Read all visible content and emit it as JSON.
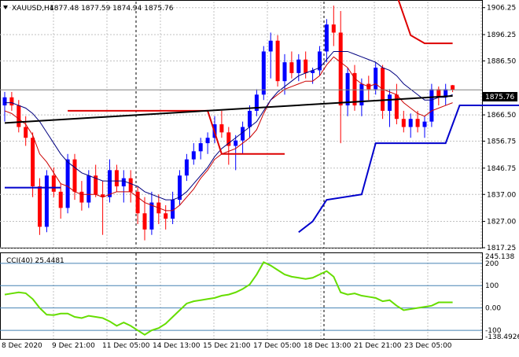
{
  "header": {
    "symbol": "XAUUSD,H4",
    "ohlc": "1877.48 1877.59 1874.94 1875.76",
    "arrow_icon": "triangle-down-icon"
  },
  "colors": {
    "background": "#ffffff",
    "grid": "#c0c0c0",
    "bull": "#0000ff",
    "bear": "#ff0000",
    "ma_fast": "#cc0000",
    "ma_slow": "#000080",
    "supertrend_up": "#0000cc",
    "supertrend_down": "#dd0000",
    "trendline": "#000000",
    "cci": "#66dd00",
    "cci_levels": "#4682b4",
    "price_tag_bg": "#000000",
    "price_tag_text": "#ffffff"
  },
  "cci_label": "CCI(40) 25.4481",
  "current_price": "1875.76",
  "price_axis_labels": [
    "1906.25",
    "1896.25",
    "1886.50",
    "1866.50",
    "1856.75",
    "1846.75",
    "1837.00",
    "1827.00",
    "1817.25"
  ],
  "cci_axis_labels": [
    "245.138",
    "200",
    "100",
    "0.00",
    "-100",
    "-138.4926"
  ],
  "time_labels": [
    "8 Dec 2020",
    "9 Dec 21:00",
    "11 Dec 05:00",
    "14 Dec 13:00",
    "15 Dec 21:00",
    "17 Dec 05:00",
    "18 Dec 13:00",
    "21 Dec 21:00",
    "23 Dec 05:00"
  ],
  "chart_data": [
    {
      "type": "candlestick",
      "title": "XAUUSD,H4",
      "y_range": [
        1817.25,
        1908.5
      ],
      "series": [
        {
          "name": "candles",
          "ohlc": [
            [
              1870,
              1875,
              1864,
              1873
            ],
            [
              1873,
              1875,
              1868,
              1870
            ],
            [
              1870,
              1872,
              1860,
              1862
            ],
            [
              1862,
              1866,
              1855,
              1858
            ],
            [
              1858,
              1860,
              1836,
              1840
            ],
            [
              1840,
              1843,
              1822,
              1825
            ],
            [
              1825,
              1846,
              1823,
              1844
            ],
            [
              1844,
              1847,
              1836,
              1838
            ],
            [
              1838,
              1841,
              1828,
              1832
            ],
            [
              1832,
              1852,
              1830,
              1850
            ],
            [
              1850,
              1852,
              1835,
              1838
            ],
            [
              1838,
              1842,
              1831,
              1834
            ],
            [
              1834,
              1846,
              1832,
              1844
            ],
            [
              1844,
              1848,
              1836,
              1837
            ],
            [
              1837,
              1842,
              1822,
              1836
            ],
            [
              1836,
              1850,
              1834,
              1846
            ],
            [
              1846,
              1848,
              1838,
              1840
            ],
            [
              1840,
              1846,
              1834,
              1843
            ],
            [
              1843,
              1846,
              1834,
              1838
            ],
            [
              1838,
              1840,
              1826,
              1830
            ],
            [
              1830,
              1836,
              1820,
              1824
            ],
            [
              1824,
              1838,
              1822,
              1834
            ],
            [
              1834,
              1837,
              1826,
              1830
            ],
            [
              1830,
              1833,
              1824,
              1828
            ],
            [
              1828,
              1838,
              1826,
              1835
            ],
            [
              1835,
              1846,
              1833,
              1844
            ],
            [
              1844,
              1852,
              1842,
              1850
            ],
            [
              1850,
              1856,
              1848,
              1853
            ],
            [
              1853,
              1858,
              1850,
              1856
            ],
            [
              1856,
              1860,
              1852,
              1858
            ],
            [
              1858,
              1866,
              1856,
              1863
            ],
            [
              1863,
              1868,
              1858,
              1860
            ],
            [
              1860,
              1862,
              1848,
              1855
            ],
            [
              1855,
              1859,
              1846,
              1857
            ],
            [
              1857,
              1864,
              1852,
              1862
            ],
            [
              1862,
              1870,
              1858,
              1868
            ],
            [
              1868,
              1876,
              1866,
              1874
            ],
            [
              1874,
              1892,
              1872,
              1890
            ],
            [
              1890,
              1897,
              1880,
              1894
            ],
            [
              1894,
              1896,
              1877,
              1879
            ],
            [
              1879,
              1889,
              1874,
              1886
            ],
            [
              1886,
              1890,
              1880,
              1882
            ],
            [
              1882,
              1889,
              1879,
              1887
            ],
            [
              1887,
              1890,
              1880,
              1882
            ],
            [
              1882,
              1884,
              1878,
              1883
            ],
            [
              1883,
              1892,
              1881,
              1890
            ],
            [
              1890,
              1902,
              1886,
              1900
            ],
            [
              1900,
              1907,
              1892,
              1897
            ],
            [
              1897,
              1905,
              1856,
              1870
            ],
            [
              1870,
              1884,
              1866,
              1882
            ],
            [
              1882,
              1885,
              1868,
              1870
            ],
            [
              1870,
              1880,
              1866,
              1878
            ],
            [
              1878,
              1881,
              1872,
              1876
            ],
            [
              1876,
              1886,
              1874,
              1884
            ],
            [
              1884,
              1885,
              1865,
              1868
            ],
            [
              1868,
              1876,
              1862,
              1874
            ],
            [
              1874,
              1878,
              1863,
              1865
            ],
            [
              1865,
              1868,
              1860,
              1862
            ],
            [
              1862,
              1867,
              1858,
              1865
            ],
            [
              1865,
              1868,
              1860,
              1862
            ],
            [
              1862,
              1866,
              1858,
              1864
            ],
            [
              1864,
              1878,
              1862,
              1876
            ],
            [
              1876,
              1877,
              1870,
              1873
            ],
            [
              1873,
              1878,
              1870,
              1876
            ],
            [
              1877.48,
              1877.59,
              1874.94,
              1875.76
            ]
          ]
        },
        {
          "name": "ma_fast",
          "values": [
            1868,
            1867,
            1865,
            1863,
            1859,
            1852,
            1849,
            1845,
            1841,
            1840,
            1838,
            1837,
            1837,
            1837,
            1836,
            1837,
            1838,
            1838,
            1838,
            1836,
            1834,
            1833,
            1832,
            1831,
            1831,
            1833,
            1836,
            1839,
            1843,
            1846,
            1850,
            1852,
            1853,
            1854,
            1856,
            1858,
            1861,
            1867,
            1872,
            1874,
            1876,
            1877,
            1878,
            1879,
            1879,
            1881,
            1885,
            1888,
            1886,
            1884,
            1880,
            1878,
            1877,
            1878,
            1876,
            1875,
            1874,
            1871,
            1869,
            1867,
            1866,
            1868,
            1869,
            1870,
            1871
          ]
        },
        {
          "name": "ma_slow",
          "values": [
            1871,
            1871,
            1870,
            1869,
            1867,
            1864,
            1860,
            1856,
            1852,
            1849,
            1847,
            1845,
            1844,
            1843,
            1842,
            1842,
            1842,
            1842,
            1841,
            1840,
            1838,
            1837,
            1836,
            1835,
            1835,
            1836,
            1838,
            1841,
            1844,
            1847,
            1851,
            1854,
            1856,
            1858,
            1860,
            1862,
            1864,
            1868,
            1872,
            1875,
            1877,
            1879,
            1881,
            1882,
            1883,
            1884,
            1887,
            1890,
            1890,
            1890,
            1889,
            1888,
            1887,
            1886,
            1884,
            1883,
            1881,
            1878,
            1876,
            1874,
            1872,
            1872,
            1873,
            1873,
            1874
          ]
        },
        {
          "name": "supertrend_down",
          "points": [
            [
              9,
              1868
            ],
            [
              29,
              1868
            ],
            [
              31,
              1852
            ],
            [
              40,
              1852
            ]
          ]
        },
        {
          "name": "supertrend_down_2",
          "points": [
            [
              56,
              1911
            ],
            [
              58,
              1896
            ],
            [
              60,
              1893
            ],
            [
              64,
              1893
            ]
          ]
        },
        {
          "name": "supertrend_up",
          "points": [
            [
              0,
              1839.5
            ],
            [
              8,
              1839.5
            ]
          ]
        },
        {
          "name": "supertrend_up_2",
          "points": [
            [
              42,
              1823
            ],
            [
              44,
              1827
            ],
            [
              46,
              1835
            ],
            [
              51,
              1837
            ],
            [
              53,
              1856
            ],
            [
              63,
              1856
            ],
            [
              65,
              1870
            ],
            [
              75,
              1870
            ]
          ]
        },
        {
          "name": "trendline",
          "points": [
            [
              0,
              1863.5
            ],
            [
              64,
              1873.5
            ]
          ]
        }
      ]
    },
    {
      "type": "line",
      "title": "CCI(40) 25.4481",
      "y_range": [
        -138.4926,
        245.138
      ],
      "levels": [
        200,
        100,
        0,
        -100
      ],
      "series": [
        {
          "name": "CCI(40)",
          "values": [
            60,
            65,
            70,
            66,
            40,
            0,
            -30,
            -32,
            -25,
            -25,
            -40,
            -45,
            -35,
            -40,
            -45,
            -60,
            -80,
            -65,
            -80,
            -100,
            -120,
            -100,
            -90,
            -70,
            -40,
            -10,
            20,
            30,
            35,
            40,
            45,
            55,
            60,
            70,
            85,
            105,
            150,
            205,
            190,
            170,
            150,
            140,
            135,
            130,
            135,
            150,
            165,
            140,
            70,
            60,
            65,
            55,
            50,
            45,
            30,
            35,
            10,
            -10,
            -5,
            0,
            5,
            10,
            25,
            25,
            25
          ]
        }
      ]
    }
  ]
}
